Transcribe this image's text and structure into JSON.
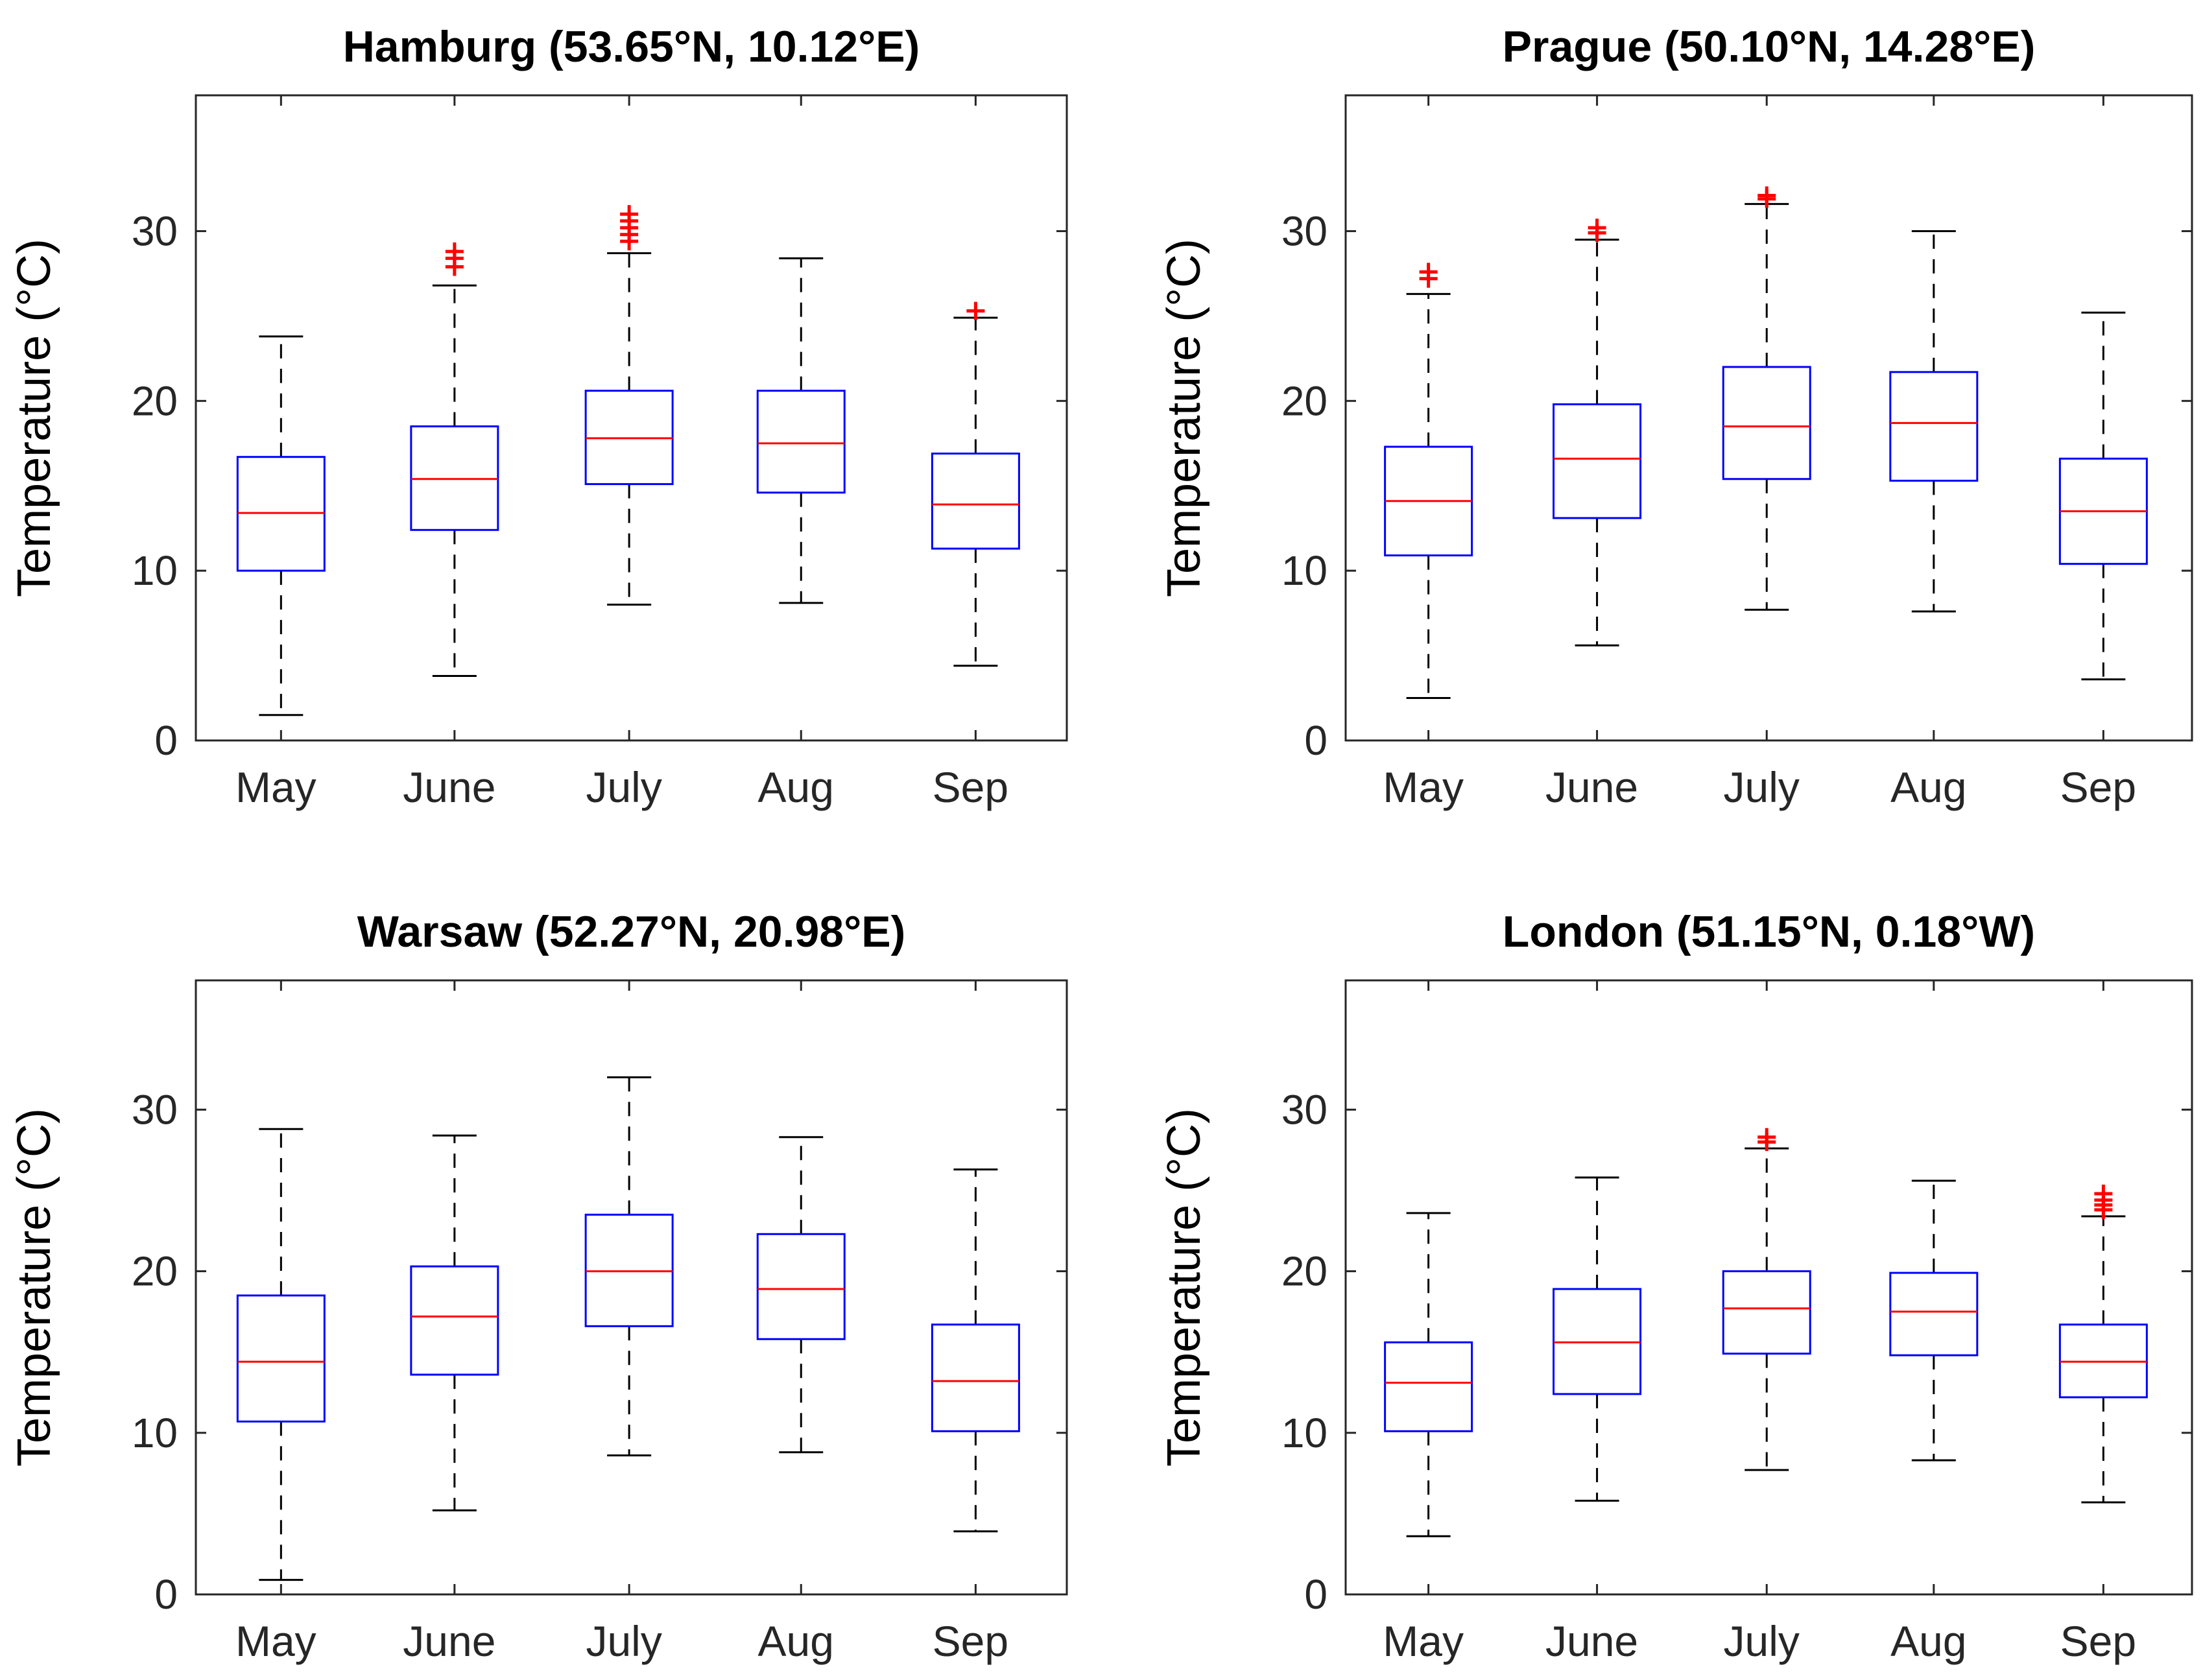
{
  "chart_data": [
    {
      "type": "boxplot",
      "title": "Hamburg (53.65°N, 10.12°E)",
      "ylabel": "Temperature (°C)",
      "xlabel": "",
      "ylim": [
        0,
        38
      ],
      "yticks": [
        0,
        10,
        20,
        30
      ],
      "categories": [
        "May",
        "June",
        "July",
        "Aug",
        "Sep"
      ],
      "boxes": [
        {
          "whisker_low": 1.5,
          "q1": 10.0,
          "median": 13.4,
          "q3": 16.7,
          "whisker_high": 23.8,
          "outliers": []
        },
        {
          "whisker_low": 3.8,
          "q1": 12.4,
          "median": 15.4,
          "q3": 18.5,
          "whisker_high": 26.8,
          "outliers": [
            27.9,
            28.4,
            28.8
          ]
        },
        {
          "whisker_low": 8.0,
          "q1": 15.1,
          "median": 17.8,
          "q3": 20.6,
          "whisker_high": 28.7,
          "outliers": [
            29.4,
            29.8,
            30.2,
            30.6,
            31.0
          ]
        },
        {
          "whisker_low": 8.1,
          "q1": 14.6,
          "median": 17.5,
          "q3": 20.6,
          "whisker_high": 28.4,
          "outliers": []
        },
        {
          "whisker_low": 4.4,
          "q1": 11.3,
          "median": 13.9,
          "q3": 16.9,
          "whisker_high": 24.9,
          "outliers": [
            25.3
          ]
        }
      ]
    },
    {
      "type": "boxplot",
      "title": "Prague (50.10°N, 14.28°E)",
      "ylabel": "Temperature (°C)",
      "xlabel": "",
      "ylim": [
        0,
        38
      ],
      "yticks": [
        0,
        10,
        20,
        30
      ],
      "categories": [
        "May",
        "June",
        "July",
        "Aug",
        "Sep"
      ],
      "boxes": [
        {
          "whisker_low": 2.5,
          "q1": 10.9,
          "median": 14.1,
          "q3": 17.3,
          "whisker_high": 26.3,
          "outliers": [
            27.2,
            27.6
          ]
        },
        {
          "whisker_low": 5.6,
          "q1": 13.1,
          "median": 16.6,
          "q3": 19.8,
          "whisker_high": 29.5,
          "outliers": [
            29.9,
            30.2
          ]
        },
        {
          "whisker_low": 7.7,
          "q1": 15.4,
          "median": 18.5,
          "q3": 22.0,
          "whisker_high": 31.6,
          "outliers": [
            31.9,
            32.1
          ]
        },
        {
          "whisker_low": 7.6,
          "q1": 15.3,
          "median": 18.7,
          "q3": 21.7,
          "whisker_high": 30.0,
          "outliers": []
        },
        {
          "whisker_low": 3.6,
          "q1": 10.4,
          "median": 13.5,
          "q3": 16.6,
          "whisker_high": 25.2,
          "outliers": []
        }
      ]
    },
    {
      "type": "boxplot",
      "title": "Warsaw (52.27°N, 20.98°E)",
      "ylabel": "Temperature (°C)",
      "xlabel": "",
      "ylim": [
        0,
        38
      ],
      "yticks": [
        0,
        10,
        20,
        30
      ],
      "categories": [
        "May",
        "June",
        "July",
        "Aug",
        "Sep"
      ],
      "boxes": [
        {
          "whisker_low": 0.9,
          "q1": 10.7,
          "median": 14.4,
          "q3": 18.5,
          "whisker_high": 28.8,
          "outliers": []
        },
        {
          "whisker_low": 5.2,
          "q1": 13.6,
          "median": 17.2,
          "q3": 20.3,
          "whisker_high": 28.4,
          "outliers": []
        },
        {
          "whisker_low": 8.6,
          "q1": 16.6,
          "median": 20.0,
          "q3": 23.5,
          "whisker_high": 32.0,
          "outliers": []
        },
        {
          "whisker_low": 8.8,
          "q1": 15.8,
          "median": 18.9,
          "q3": 22.3,
          "whisker_high": 28.3,
          "outliers": []
        },
        {
          "whisker_low": 3.9,
          "q1": 10.1,
          "median": 13.2,
          "q3": 16.7,
          "whisker_high": 26.3,
          "outliers": []
        }
      ]
    },
    {
      "type": "boxplot",
      "title": "London (51.15°N, 0.18°W)",
      "ylabel": "Temperature (°C)",
      "xlabel": "",
      "ylim": [
        0,
        38
      ],
      "yticks": [
        0,
        10,
        20,
        30
      ],
      "categories": [
        "May",
        "June",
        "July",
        "Aug",
        "Sep"
      ],
      "boxes": [
        {
          "whisker_low": 3.6,
          "q1": 10.1,
          "median": 13.1,
          "q3": 15.6,
          "whisker_high": 23.6,
          "outliers": []
        },
        {
          "whisker_low": 5.8,
          "q1": 12.4,
          "median": 15.6,
          "q3": 18.9,
          "whisker_high": 25.8,
          "outliers": []
        },
        {
          "whisker_low": 7.7,
          "q1": 14.9,
          "median": 17.7,
          "q3": 20.0,
          "whisker_high": 27.6,
          "outliers": [
            28.0,
            28.3
          ]
        },
        {
          "whisker_low": 8.3,
          "q1": 14.8,
          "median": 17.5,
          "q3": 19.9,
          "whisker_high": 25.6,
          "outliers": []
        },
        {
          "whisker_low": 5.7,
          "q1": 12.2,
          "median": 14.4,
          "q3": 16.7,
          "whisker_high": 23.4,
          "outliers": [
            23.8,
            24.1,
            24.4,
            24.8
          ]
        }
      ]
    }
  ],
  "colors": {
    "box": "#0000ff",
    "median": "#ff0000",
    "outlier": "#ff0000",
    "whisker": "#000000",
    "axis": "#262626"
  }
}
